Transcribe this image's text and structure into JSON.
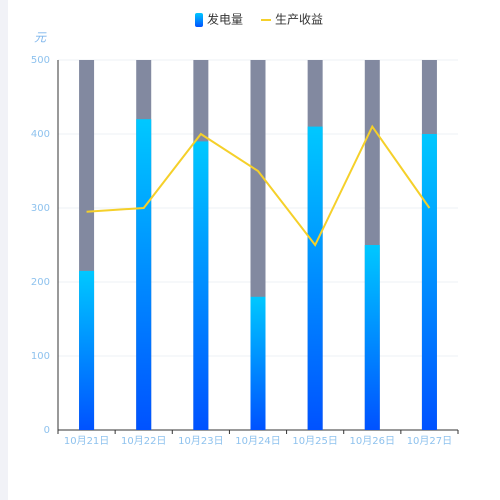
{
  "chart_data": {
    "type": "bar_line",
    "y_axis_label": "元",
    "categories": [
      "10月21日",
      "10月22日",
      "10月23日",
      "10月24日",
      "10月25日",
      "10月26日",
      "10月27日"
    ],
    "series": [
      {
        "name": "发电量",
        "type": "bar",
        "color": "#0a8cff",
        "gradient": [
          "#00c8ff",
          "#0052ff"
        ],
        "values": [
          215,
          420,
          390,
          180,
          410,
          250,
          400
        ]
      },
      {
        "name": "生产收益",
        "type": "line",
        "color": "#f5d02a",
        "values": [
          295,
          300,
          400,
          350,
          250,
          410,
          300
        ]
      }
    ],
    "ylim": [
      0,
      500
    ],
    "yticks": [
      0,
      100,
      200,
      300,
      400,
      500
    ],
    "grid": true
  }
}
